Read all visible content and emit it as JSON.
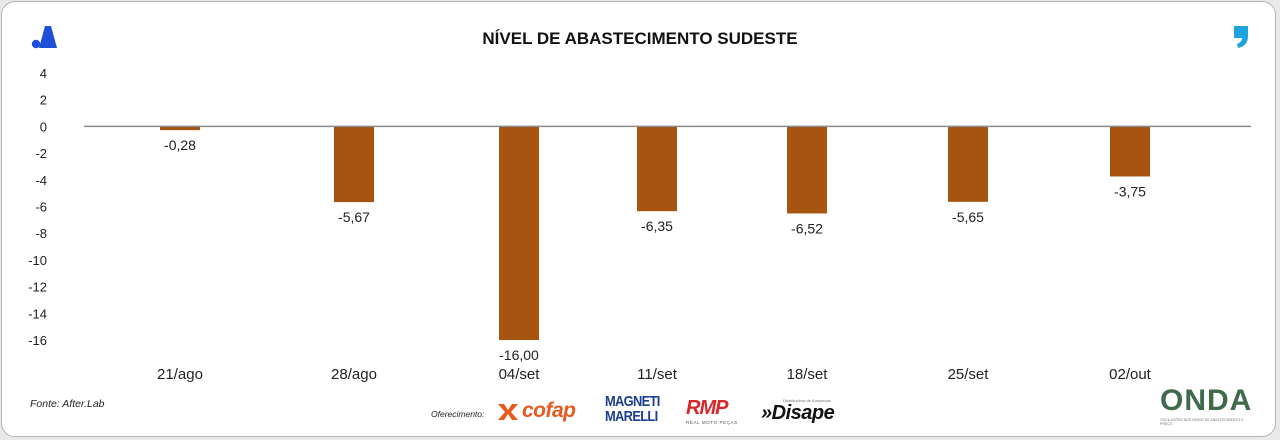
{
  "header": {
    "title": "NÍVEL DE ABASTECIMENTO SUDESTE"
  },
  "footer": {
    "source": "Fonte: After.Lab",
    "sponsor_label": "Oferecimento:",
    "sponsors": {
      "cofap": "cofap",
      "magneti_line1": "MAGNETI",
      "magneti_line2": "MARELLI",
      "rmp": "RMP",
      "rmp_sub": "REAL MOTO PEÇAS",
      "disape": "»Disape",
      "disape_sub": "Distribuidora de Autopeças",
      "onda": "ONDA",
      "onda_sub": "OSCILAÇÕES NOS NÍVEIS DE ABASTECIMENTO E PREÇO"
    }
  },
  "icons": {
    "brand": "after-lab-logo-icon",
    "quote": "quote-mark-icon"
  },
  "colors": {
    "bar": "#a6540f",
    "zero_line": "#8c8c8c",
    "brand_blue": "#1e4fd8",
    "quote_blue": "#1fa3dc"
  },
  "chart_data": {
    "type": "bar",
    "title": "NÍVEL DE ABASTECIMENTO SUDESTE",
    "categories": [
      "21/ago",
      "28/ago",
      "04/set",
      "11/set",
      "18/set",
      "25/set",
      "02/out"
    ],
    "values": [
      -0.28,
      -5.67,
      -16.0,
      -6.35,
      -6.52,
      -5.65,
      -3.75
    ],
    "labels": [
      "-0,28",
      "-5,67",
      "-16,00",
      "-6,35",
      "-6,52",
      "-5,65",
      "-3,75"
    ],
    "yticks": [
      "4",
      "2",
      "0",
      "-2",
      "-4",
      "-6",
      "-8",
      "-10",
      "-12",
      "-14",
      "-16"
    ],
    "ylim": [
      -16,
      4
    ],
    "grid": false,
    "legend": "none"
  }
}
